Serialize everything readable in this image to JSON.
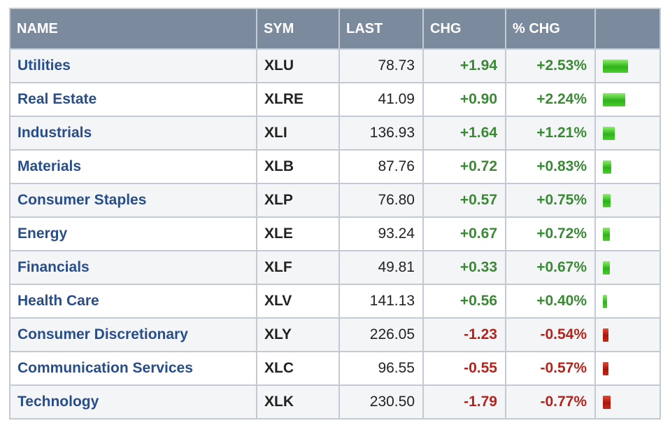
{
  "table": {
    "headers": {
      "name": "NAME",
      "sym": "SYM",
      "last": "LAST",
      "chg": "CHG",
      "pct": "% CHG",
      "bar": ""
    },
    "rows": [
      {
        "name": "Utilities",
        "sym": "XLU",
        "last": "78.73",
        "chg": "+1.94",
        "pct": "+2.53%",
        "direction": "up",
        "pct_value": 2.53
      },
      {
        "name": "Real Estate",
        "sym": "XLRE",
        "last": "41.09",
        "chg": "+0.90",
        "pct": "+2.24%",
        "direction": "up",
        "pct_value": 2.24
      },
      {
        "name": "Industrials",
        "sym": "XLI",
        "last": "136.93",
        "chg": "+1.64",
        "pct": "+1.21%",
        "direction": "up",
        "pct_value": 1.21
      },
      {
        "name": "Materials",
        "sym": "XLB",
        "last": "87.76",
        "chg": "+0.72",
        "pct": "+0.83%",
        "direction": "up",
        "pct_value": 0.83
      },
      {
        "name": "Consumer Staples",
        "sym": "XLP",
        "last": "76.80",
        "chg": "+0.57",
        "pct": "+0.75%",
        "direction": "up",
        "pct_value": 0.75
      },
      {
        "name": "Energy",
        "sym": "XLE",
        "last": "93.24",
        "chg": "+0.67",
        "pct": "+0.72%",
        "direction": "up",
        "pct_value": 0.72
      },
      {
        "name": "Financials",
        "sym": "XLF",
        "last": "49.81",
        "chg": "+0.33",
        "pct": "+0.67%",
        "direction": "up",
        "pct_value": 0.67
      },
      {
        "name": "Health Care",
        "sym": "XLV",
        "last": "141.13",
        "chg": "+0.56",
        "pct": "+0.40%",
        "direction": "up",
        "pct_value": 0.4
      },
      {
        "name": "Consumer Discretionary",
        "sym": "XLY",
        "last": "226.05",
        "chg": "-1.23",
        "pct": "-0.54%",
        "direction": "down",
        "pct_value": -0.54
      },
      {
        "name": "Communication Services",
        "sym": "XLC",
        "last": "96.55",
        "chg": "-0.55",
        "pct": "-0.57%",
        "direction": "down",
        "pct_value": -0.57
      },
      {
        "name": "Technology",
        "sym": "XLK",
        "last": "230.50",
        "chg": "-1.79",
        "pct": "-0.77%",
        "direction": "down",
        "pct_value": -0.77
      }
    ]
  },
  "colors": {
    "header_bg": "#7c8a9e",
    "name_text": "#284e8a",
    "positive": "#3a8a35",
    "negative": "#b5231c",
    "bar_up": "#3fc024",
    "bar_down": "#b91d12"
  }
}
